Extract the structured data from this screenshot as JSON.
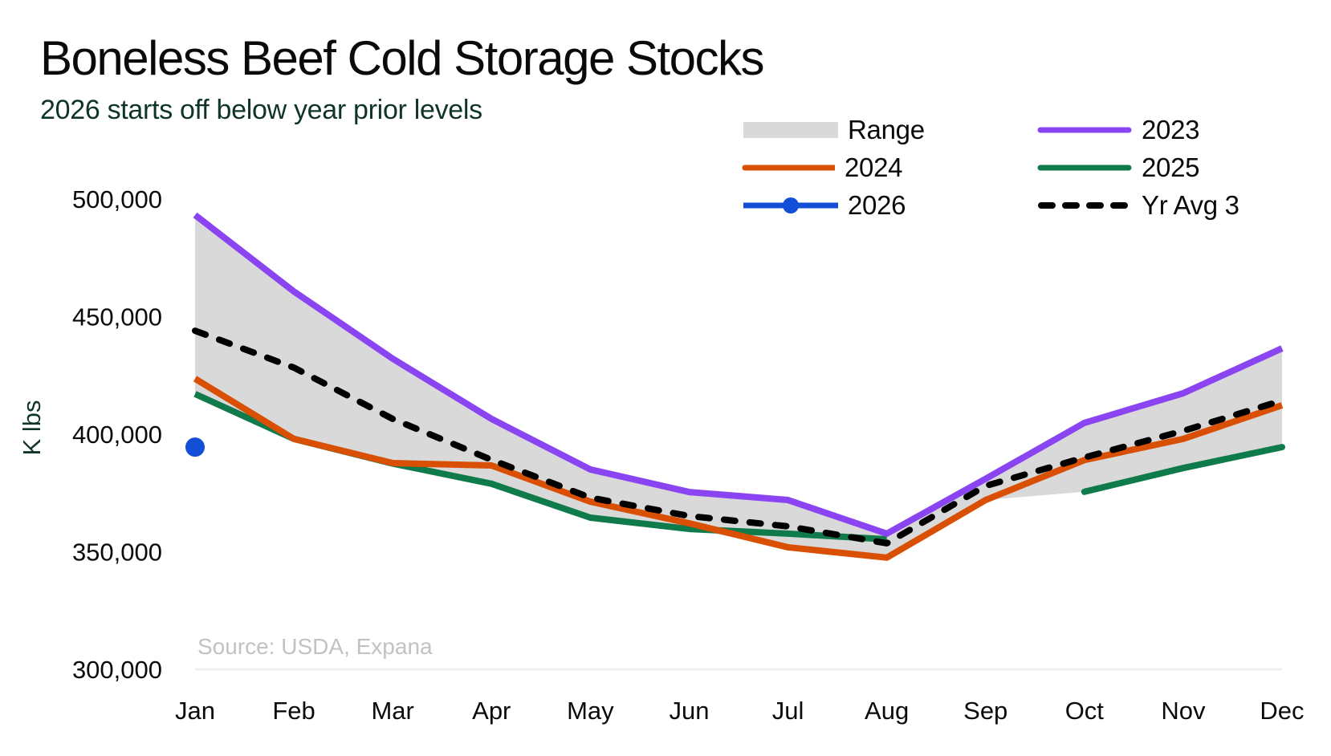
{
  "header": {
    "title": "Boneless Beef Cold Storage Stocks",
    "subtitle": "2026 starts off below year prior levels"
  },
  "legend": [
    {
      "key": "range",
      "label": "Range",
      "color": "#d9d9d9",
      "style": "area"
    },
    {
      "key": "y2023",
      "label": "2023",
      "color": "#8a44f2",
      "style": "line"
    },
    {
      "key": "y2024",
      "label": "2024",
      "color": "#d94f04",
      "style": "line"
    },
    {
      "key": "y2025",
      "label": "2025",
      "color": "#0f7b4b",
      "style": "line"
    },
    {
      "key": "y2026",
      "label": "2026",
      "color": "#124fd6",
      "style": "line-marker"
    },
    {
      "key": "avg3",
      "label": "Yr Avg 3",
      "color": "#000000",
      "style": "dashed"
    }
  ],
  "chart_data": {
    "type": "line",
    "title": "Boneless Beef Cold Storage Stocks",
    "subtitle": "2026 starts off below year prior levels",
    "xlabel": "",
    "ylabel": "K lbs",
    "ylim": [
      300000,
      500000
    ],
    "yticks": [
      300000,
      350000,
      400000,
      450000,
      500000
    ],
    "ytick_labels": [
      "300,000",
      "350,000",
      "400,000",
      "450,000",
      "500,000"
    ],
    "categories": [
      "Jan",
      "Feb",
      "Mar",
      "Apr",
      "May",
      "Jun",
      "Jul",
      "Aug",
      "Sep",
      "Oct",
      "Nov",
      "Dec"
    ],
    "grid": false,
    "legend_position": "top-right",
    "annotation": "Source: USDA, Expana",
    "range": {
      "name": "Range",
      "upper": [
        493200,
        460700,
        432100,
        406500,
        385000,
        375400,
        372000,
        357700,
        381000,
        404800,
        417400,
        436500
      ],
      "lower": [
        417100,
        398000,
        387500,
        378900,
        364500,
        359700,
        351900,
        347500,
        372000,
        375500,
        385600,
        394500
      ]
    },
    "series": [
      {
        "name": "2023",
        "key": "y2023",
        "values": [
          493200,
          460700,
          432100,
          406500,
          385000,
          375400,
          372000,
          357700,
          381000,
          404800,
          417400,
          436500
        ]
      },
      {
        "name": "2024",
        "key": "y2024",
        "values": [
          423600,
          398000,
          387700,
          386700,
          371300,
          362100,
          351900,
          347500,
          372000,
          389000,
          398000,
          412300
        ]
      },
      {
        "name": "2025",
        "key": "y2025",
        "values": [
          417100,
          398000,
          387500,
          378900,
          364500,
          359700,
          357700,
          355300,
          null,
          375500,
          385600,
          394500
        ]
      },
      {
        "name": "2026",
        "key": "y2026",
        "values": [
          394500,
          null,
          null,
          null,
          null,
          null,
          null,
          null,
          null,
          null,
          null,
          null
        ]
      },
      {
        "name": "Yr Avg 3",
        "key": "avg3",
        "values": [
          444000,
          428300,
          406500,
          389100,
          373000,
          365200,
          360800,
          353600,
          378000,
          390100,
          401400,
          414300
        ]
      }
    ]
  }
}
